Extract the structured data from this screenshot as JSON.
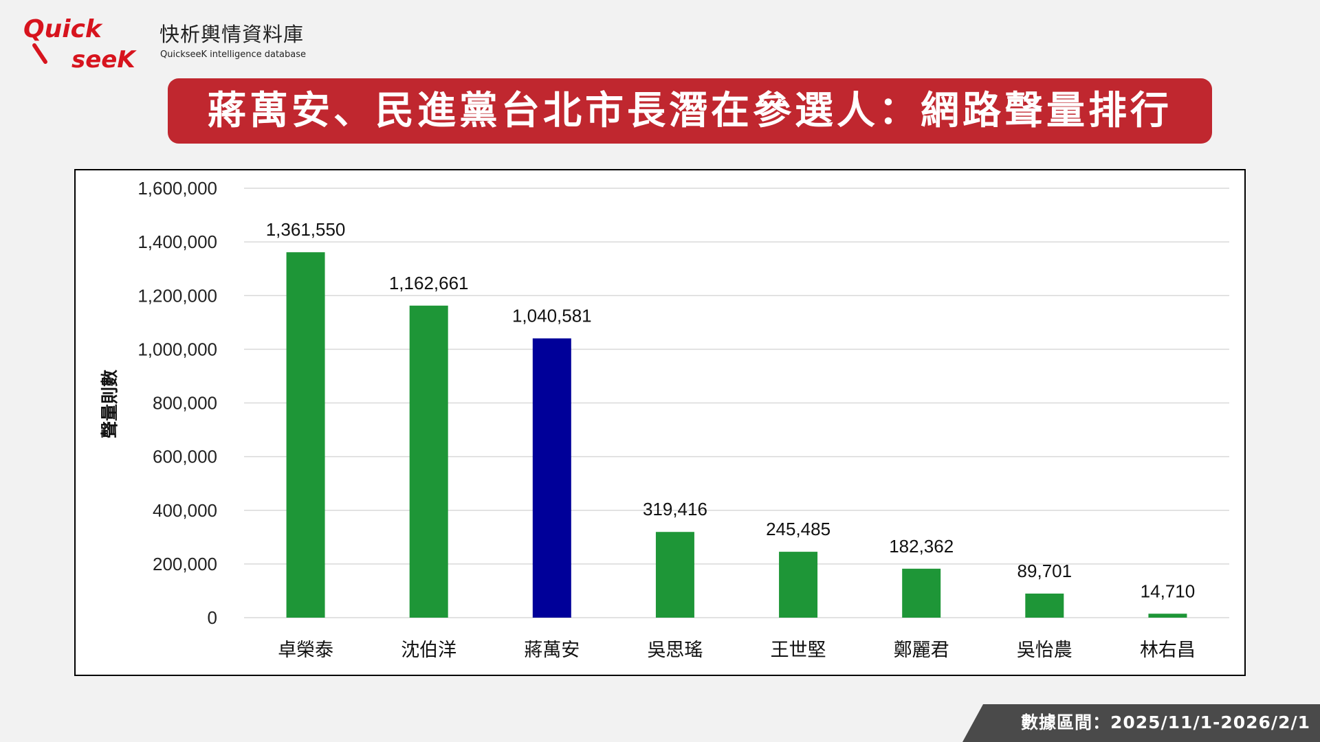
{
  "brand": {
    "logo_text": "QuickseeK",
    "name_cn": "快析輿情資料庫",
    "name_en": "QuickseeK intelligence database"
  },
  "title": "蔣萬安、民進黨台北市長潛在參選人：網路聲量排行",
  "footer": "數據區間：2025/11/1-2026/2/1",
  "colors": {
    "green": "#1e9637",
    "blue": "#000099",
    "title_bg": "#c0272f"
  },
  "chart_data": {
    "type": "bar",
    "title": "蔣萬安、民進黨台北市長潛在參選人：網路聲量排行",
    "xlabel": "",
    "ylabel": "聲量則數",
    "ylim": [
      0,
      1600000
    ],
    "yticks": [
      0,
      200000,
      400000,
      600000,
      800000,
      1000000,
      1200000,
      1400000,
      1600000
    ],
    "ytick_labels": [
      "0",
      "200,000",
      "400,000",
      "600,000",
      "800,000",
      "1,000,000",
      "1,200,000",
      "1,400,000",
      "1,600,000"
    ],
    "grid": true,
    "categories": [
      "卓榮泰",
      "沈伯洋",
      "蔣萬安",
      "吳思瑤",
      "王世堅",
      "鄭麗君",
      "吳怡農",
      "林右昌"
    ],
    "values": [
      1361550,
      1162661,
      1040581,
      319416,
      245485,
      182362,
      89701,
      14710
    ],
    "value_labels": [
      "1,361,550",
      "1,162,661",
      "1,040,581",
      "319,416",
      "245,485",
      "182,362",
      "89,701",
      "14,710"
    ],
    "bar_colors": [
      "#1e9637",
      "#1e9637",
      "#000099",
      "#1e9637",
      "#1e9637",
      "#1e9637",
      "#1e9637",
      "#1e9637"
    ]
  }
}
